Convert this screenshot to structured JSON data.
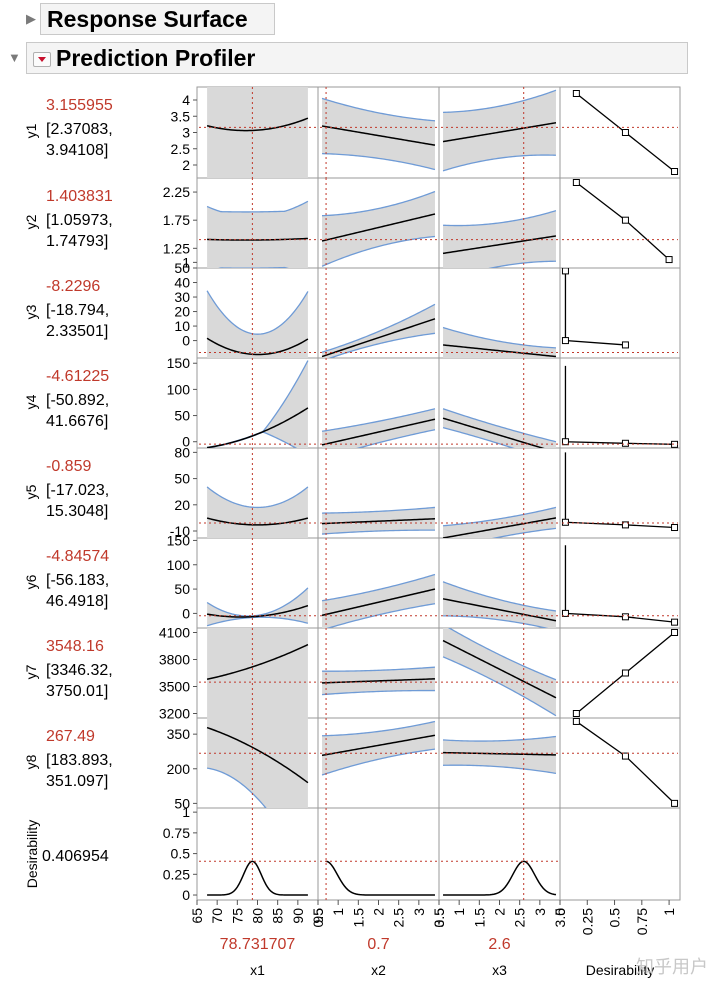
{
  "sections": {
    "response_surface": "Response Surface",
    "prediction_profiler": "Prediction Profiler"
  },
  "colors": {
    "accent": "#c0392b",
    "band": "#d9d9d9",
    "band_edge": "#6f9bd6",
    "grid": "#9a9a9a"
  },
  "desirability": {
    "name": "Desirability",
    "value": "0.406954"
  },
  "factors": [
    {
      "name": "x1",
      "current": "78.731707"
    },
    {
      "name": "x2",
      "current": "0.7"
    },
    {
      "name": "x3",
      "current": "2.6"
    },
    {
      "name": "Desirability",
      "current": ""
    }
  ],
  "responses": [
    {
      "name": "y1",
      "value": "3.155955",
      "ci1": "[2.37083,",
      "ci2": "3.94108]"
    },
    {
      "name": "y2",
      "value": "1.403831",
      "ci1": "[1.05973,",
      "ci2": "1.74793]"
    },
    {
      "name": "y3",
      "value": "-8.2296",
      "ci1": "[-18.794,",
      "ci2": "2.33501]"
    },
    {
      "name": "y4",
      "value": "-4.61225",
      "ci1": "[-50.892,",
      "ci2": "41.6676]"
    },
    {
      "name": "y5",
      "value": "-0.859",
      "ci1": "[-17.023,",
      "ci2": "15.3048]"
    },
    {
      "name": "y6",
      "value": "-4.84574",
      "ci1": "[-56.183,",
      "ci2": "46.4918]"
    },
    {
      "name": "y7",
      "value": "3548.16",
      "ci1": "[3346.32,",
      "ci2": "3750.01]"
    },
    {
      "name": "y8",
      "value": "267.49",
      "ci1": "[183.893,",
      "ci2": "351.097]"
    }
  ],
  "watermark": "知乎用户",
  "chart_data": {
    "type": "line",
    "title": "Prediction Profiler",
    "columns": [
      {
        "name": "x1",
        "xlim": [
          65,
          95
        ],
        "ticks": [
          "65",
          "70",
          "75",
          "80",
          "85",
          "90",
          "95"
        ],
        "tick_values": [
          65,
          70,
          75,
          80,
          85,
          90,
          95
        ],
        "current": 78.731707,
        "range": [
          67.5,
          92.5
        ]
      },
      {
        "name": "x2",
        "xlim": [
          0.5,
          3.5
        ],
        "ticks": [
          "0.5",
          "1",
          "1.5",
          "2",
          "2.5",
          "3",
          "3.5"
        ],
        "tick_values": [
          0.5,
          1,
          1.5,
          2,
          2.5,
          3,
          3.5
        ],
        "current": 0.7,
        "range": [
          0.6,
          3.4
        ]
      },
      {
        "name": "x3",
        "xlim": [
          0.5,
          3.5
        ],
        "ticks": [
          "0.5",
          "1",
          "1.5",
          "2",
          "2.5",
          "3",
          "3.5"
        ],
        "tick_values": [
          0.5,
          1,
          1.5,
          2,
          2.5,
          3,
          3.5
        ],
        "current": 2.6,
        "range": [
          0.6,
          3.4
        ]
      },
      {
        "name": "Desirability",
        "xlim": [
          0,
          1.1
        ],
        "ticks": [
          "0",
          "0.25",
          "0.5",
          "0.75",
          "1"
        ],
        "tick_values": [
          0,
          0.25,
          0.5,
          0.75,
          1
        ]
      }
    ],
    "rows": [
      {
        "name": "y1",
        "ylim": [
          1.6,
          4.4
        ],
        "ticks": [
          "2",
          "2.5",
          "3",
          "3.5",
          "4"
        ],
        "tick_values": [
          2,
          2.5,
          3,
          3.5,
          4
        ],
        "current": 3.155955,
        "curves": [
          {
            "q": [
              0.001617,
              -0.24946,
              12.68
            ],
            "c": [
              0.0046,
              -0.7151,
              30.5
            ]
          },
          {
            "a": 3.2,
            "b": 2.61,
            "ca": 0.85,
            "cb": 0.75,
            "cm": 0.6,
            "cv": 0.55
          },
          {
            "a": 2.72,
            "b": 3.3,
            "ca": 0.9,
            "cb": 1.0,
            "cm": 0.65,
            "cv": 0.6
          }
        ],
        "des": {
          "pts": [
            [
              0.15,
              4.2
            ],
            [
              0.6,
              3.0
            ],
            [
              1.05,
              1.8
            ]
          ]
        }
      },
      {
        "name": "y2",
        "ylim": [
          0.9,
          2.5
        ],
        "ticks": [
          "1",
          "1.25",
          "1.75",
          "2.25"
        ],
        "tick_values": [
          1,
          1.25,
          1.75,
          2.25
        ],
        "current": 1.403831,
        "curves": [
          {
            "q": [
              0.00012,
              -0.0185,
              2.11
            ],
            "c": [
              0.0013,
              -0.205,
              8.5
            ]
          },
          {
            "a": 1.38,
            "b": 1.86,
            "ca": 0.45,
            "cb": 0.4,
            "cm": 0.25,
            "cv": 0.3
          },
          {
            "a": 1.16,
            "b": 1.47,
            "ca": 0.5,
            "cb": 0.45,
            "cm": 0.3,
            "cv": 0.3
          }
        ],
        "des": {
          "pts": [
            [
              0.15,
              2.42
            ],
            [
              0.6,
              1.75
            ],
            [
              1.0,
              1.05
            ]
          ]
        }
      },
      {
        "name": "y3",
        "ylim": [
          -12,
          50
        ],
        "ticks": [
          "0",
          "10",
          "20",
          "30",
          "40",
          "50"
        ],
        "tick_values": [
          0,
          10,
          20,
          30,
          40,
          50
        ],
        "current": -8.2296,
        "curves": [
          {
            "q": [
              0.07,
              -11.22,
              440
            ],
            "c": [
              0.12,
              -19.2,
              782
            ]
          },
          {
            "a": -11,
            "b": 15,
            "ca": 3,
            "cb": 10,
            "cm": 2,
            "cv": 1
          },
          {
            "a": -3,
            "b": -11,
            "ca": 12,
            "cb": 6,
            "cm": 4,
            "cv": 2
          }
        ],
        "des": {
          "pts": [
            [
              0.05,
              48
            ],
            [
              0.05,
              0
            ],
            [
              0.6,
              -3
            ]
          ]
        }
      },
      {
        "name": "y4",
        "ylim": [
          -12,
          160
        ],
        "ticks": [
          "0",
          "50",
          "100",
          "150"
        ],
        "tick_values": [
          0,
          50,
          100,
          150
        ],
        "current": -4.61225,
        "curves": [
          {
            "q": [
              0.076,
              -9.12,
              258
            ],
            "c": [
              0.15,
              -18,
              472
            ]
          },
          {
            "a": -6,
            "b": 43,
            "ca": 26,
            "cb": 20,
            "cm": 18,
            "cv": 3
          },
          {
            "a": 45,
            "b": -20,
            "ca": 18,
            "cb": 20,
            "cm": 14,
            "cv": 3
          }
        ],
        "des": {
          "pts": [
            [
              0.05,
              145
            ],
            [
              0.05,
              0
            ],
            [
              0.6,
              -3
            ],
            [
              1.05,
              -5
            ]
          ]
        }
      },
      {
        "name": "y5",
        "ylim": [
          -18,
          85
        ],
        "ticks": [
          "-10",
          "20",
          "50",
          "80"
        ],
        "tick_values": [
          -10,
          20,
          50,
          80
        ],
        "current": -0.859,
        "curves": [
          {
            "q": [
              0.05,
              -8,
              317
            ],
            "c": [
              0.1,
              -16,
              660
            ]
          },
          {
            "a": -1.5,
            "b": 4,
            "ca": 12,
            "cb": 13,
            "cm": 10,
            "cv": 2
          },
          {
            "a": -18,
            "b": 5,
            "ca": 14,
            "cb": 12,
            "cm": 8,
            "cv": 2
          }
        ],
        "des": {
          "pts": [
            [
              0.05,
              80
            ],
            [
              0.05,
              0
            ],
            [
              0.6,
              -3
            ],
            [
              1.05,
              -6
            ]
          ]
        }
      },
      {
        "name": "y6",
        "ylim": [
          -30,
          155
        ],
        "ticks": [
          "0",
          "50",
          "100",
          "150"
        ],
        "tick_values": [
          0,
          50,
          100,
          150
        ],
        "current": -4.84574,
        "curves": [
          {
            "q": [
              0.085,
              -12.9,
              482
            ],
            "c": [
              0.18,
              -28.3,
              1114
            ]
          },
          {
            "a": -4,
            "b": 50,
            "ca": 30,
            "cb": 30,
            "cm": 22,
            "cv": 3
          },
          {
            "a": 30,
            "b": -15,
            "ca": 35,
            "cb": 20,
            "cm": 14,
            "cv": 3
          }
        ],
        "des": {
          "pts": [
            [
              0.05,
              140
            ],
            [
              0.05,
              0
            ],
            [
              0.6,
              -7
            ],
            [
              1.05,
              -18
            ]
          ]
        }
      },
      {
        "name": "y7",
        "ylim": [
          3150,
          4150
        ],
        "ticks": [
          "3200",
          "3500",
          "3800",
          "4100"
        ],
        "tick_values": [
          3200,
          3500,
          3800,
          4100
        ],
        "current": 3548.16,
        "curves": [
          {
            "q": [
              0.23,
              -21.4,
              3977
            ],
            "c": [
              0.6,
              -80,
              3260
            ]
          },
          {
            "a": 3540,
            "b": 3585,
            "ca": 130,
            "cb": 130,
            "cm": 105,
            "cv": 5
          },
          {
            "a": 4010,
            "b": 3375,
            "ca": 180,
            "cb": 200,
            "cm": 130,
            "cv": 30
          }
        ],
        "des": {
          "pts": [
            [
              0.15,
              3200
            ],
            [
              0.6,
              3650
            ],
            [
              1.05,
              4100
            ]
          ]
        }
      },
      {
        "name": "y8",
        "ylim": [
          30,
          420
        ],
        "ticks": [
          "50",
          "200",
          "350"
        ],
        "tick_values": [
          50,
          200,
          350
        ],
        "current": 267.49,
        "curves": [
          {
            "q": [
              -0.14,
              12.85,
              149
            ],
            "c": [
              0.5,
              -71,
              2690
            ]
          },
          {
            "a": 258,
            "b": 345,
            "ca": 85,
            "cb": 60,
            "cm": 48,
            "cv": 10
          },
          {
            "a": 270,
            "b": 260,
            "ca": 55,
            "cb": 80,
            "cm": 45,
            "cv": 10
          }
        ],
        "des": {
          "pts": [
            [
              0.15,
              405
            ],
            [
              0.6,
              255
            ],
            [
              1.05,
              50
            ]
          ]
        }
      },
      {
        "name": "Desirability",
        "ylim": [
          -0.06,
          1.05
        ],
        "ticks": [
          "0",
          "0.25",
          "0.5",
          "0.75",
          "1"
        ],
        "tick_values": [
          0,
          0.25,
          0.5,
          0.75,
          1
        ],
        "current": 0.406954,
        "curves": [
          {
            "g": [
              0.406954,
              78.73,
              2.2
            ]
          },
          {
            "g": [
              0.406954,
              0.7,
              0.28
            ],
            "trunc": true
          },
          {
            "g": [
              0.406954,
              2.6,
              0.27
            ]
          }
        ],
        "des": null
      }
    ]
  }
}
